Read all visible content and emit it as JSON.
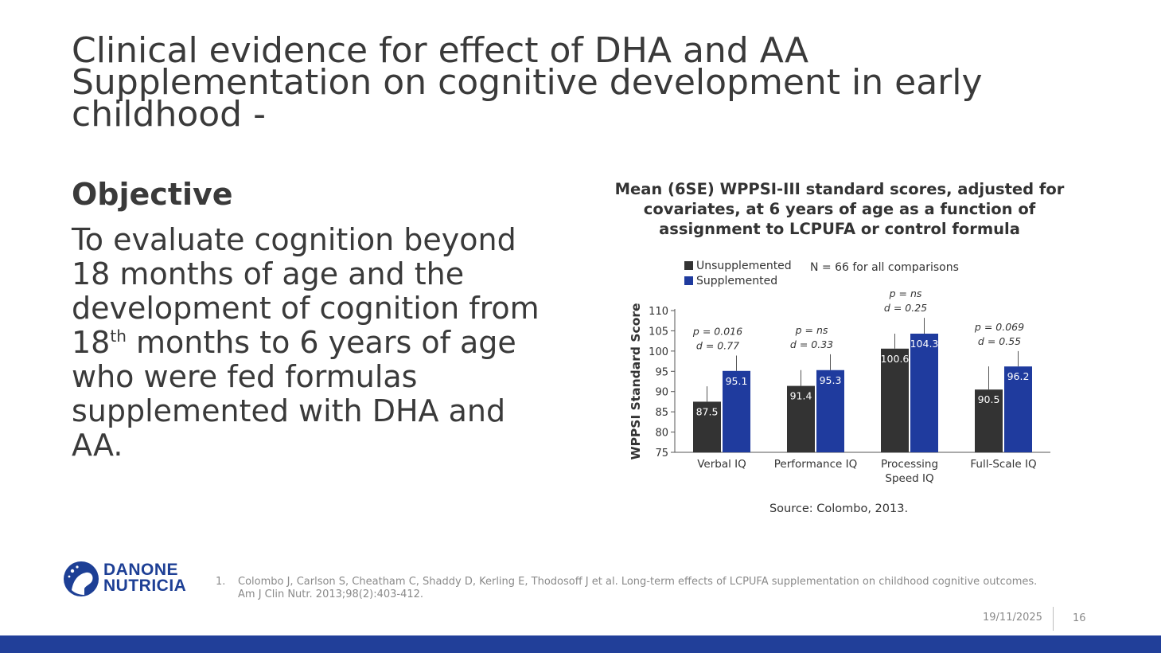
{
  "title": {
    "line1": "Clinical evidence for effect of  DHA and AA",
    "line2": "Supplementation on cognitive development in early",
    "line3": "childhood -"
  },
  "objective": {
    "heading": "Objective",
    "line1": "To evaluate cognition beyond",
    "line2": "18 months of age and the",
    "line3": "development of cognition from",
    "line4_pre": "18",
    "line4_sup": "th",
    "line4_post": " months to 6 years of age",
    "line5": "who were fed formulas",
    "line6": "supplemented with DHA and",
    "line7": "AA."
  },
  "chart_title": {
    "line1": "Mean (6SE) WPPSI-III standard scores, adjusted for",
    "line2": "covariates, at 6 years of age as a function of",
    "line3": "assignment to LCPUFA or control formula"
  },
  "chart_data": {
    "type": "bar",
    "title": "Mean (6SE) WPPSI-III standard scores, adjusted for covariates, at 6 years of age as a function of assignment to LCPUFA or control formula",
    "ylabel": "WPPSI Standard Score",
    "xlabel": "",
    "ylim": [
      75,
      110
    ],
    "yticks": [
      75,
      80,
      85,
      90,
      95,
      100,
      105,
      110
    ],
    "categories": [
      {
        "line1": "Verbal IQ",
        "line2": ""
      },
      {
        "line1": "Performance IQ",
        "line2": ""
      },
      {
        "line1": "Processing",
        "line2": "Speed IQ"
      },
      {
        "line1": "Full-Scale IQ",
        "line2": ""
      }
    ],
    "series": [
      {
        "name": "Unsupplemented",
        "color": "#333333",
        "values": [
          87.5,
          91.4,
          100.6,
          90.5
        ],
        "labels": [
          "87.5",
          "91.4",
          "100.6",
          "90.5"
        ],
        "err_top": [
          91.3,
          95.3,
          104.3,
          96.2
        ]
      },
      {
        "name": "Supplemented",
        "color": "#1f3b9e",
        "values": [
          95.1,
          95.3,
          104.3,
          96.2
        ],
        "labels": [
          "95.1",
          "95.3",
          "104.3",
          "96.2"
        ],
        "err_top": [
          98.9,
          99.2,
          108.2,
          100.0
        ]
      }
    ],
    "stats": [
      {
        "p": "p = 0.016",
        "d": "d = 0.77"
      },
      {
        "p": "p = ns",
        "d": "d = 0.33"
      },
      {
        "p": "p = ns",
        "d": "d = 0.25"
      },
      {
        "p": "p = 0.069",
        "d": "d = 0.55"
      }
    ],
    "note": "N = 66 for all comparisons",
    "legend_position": "top-left"
  },
  "source": "Source: Colombo, 2013.",
  "logo": {
    "line1": "DANONE",
    "line2": "NUTRICIA"
  },
  "reference": {
    "number": "1.",
    "text": "Colombo J, Carlson S, Cheatham C, Shaddy D, Kerling E, Thodosoff J et al. Long-term effects of LCPUFA supplementation on childhood cognitive outcomes. Am J Clin Nutr. 2013;98(2):403-412."
  },
  "footer": {
    "date": "19/11/2025",
    "page": "16"
  },
  "colors": {
    "accent": "#213f99",
    "text": "#3a3a3a",
    "muted": "#8a8a8a"
  }
}
